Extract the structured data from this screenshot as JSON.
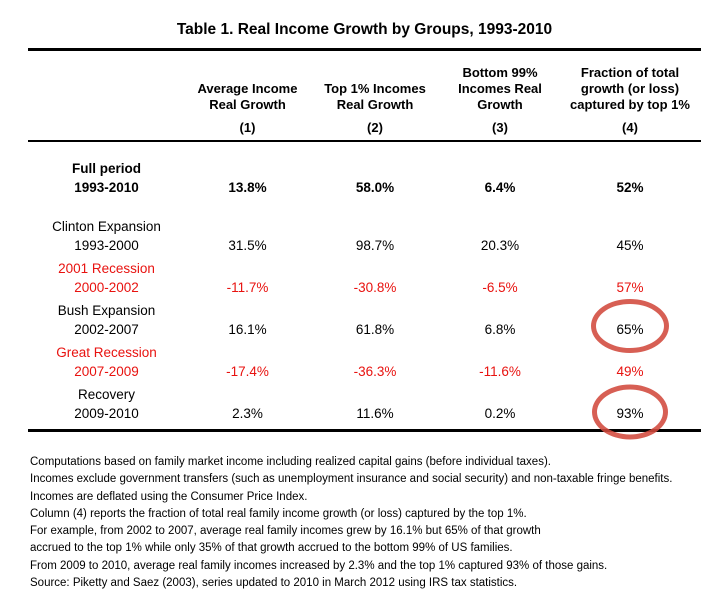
{
  "title": "Table 1. Real Income Growth by Groups, 1993-2010",
  "table": {
    "columns": [
      {
        "lines": [
          "Average Income",
          "Real Growth"
        ],
        "number": "(1)"
      },
      {
        "lines": [
          "Top 1% Incomes",
          "Real Growth"
        ],
        "number": "(2)"
      },
      {
        "lines": [
          "Bottom 99%",
          "Incomes Real",
          "Growth"
        ],
        "number": "(3)"
      },
      {
        "lines": [
          "Fraction of total",
          "growth (or loss)",
          "captured by top 1%"
        ],
        "number": "(4)"
      }
    ],
    "rows": [
      {
        "name": "Full period",
        "period": "1993-2010",
        "values": [
          "13.8%",
          "58.0%",
          "6.4%",
          "52%"
        ],
        "bold": true,
        "color": "black",
        "circled": false
      },
      {
        "name": "Clinton Expansion",
        "period": "1993-2000",
        "values": [
          "31.5%",
          "98.7%",
          "20.3%",
          "45%"
        ],
        "bold": false,
        "color": "black",
        "circled": false
      },
      {
        "name": "2001 Recession",
        "period": "2000-2002",
        "values": [
          "-11.7%",
          "-30.8%",
          "-6.5%",
          "57%"
        ],
        "bold": false,
        "color": "red",
        "circled": false
      },
      {
        "name": "Bush Expansion",
        "period": "2002-2007",
        "values": [
          "16.1%",
          "61.8%",
          "6.8%",
          "65%"
        ],
        "bold": false,
        "color": "black",
        "circled": true
      },
      {
        "name": "Great Recession",
        "period": "2007-2009",
        "values": [
          "-17.4%",
          "-36.3%",
          "-11.6%",
          "49%"
        ],
        "bold": false,
        "color": "red",
        "circled": false
      },
      {
        "name": "Recovery",
        "period": "2009-2010",
        "values": [
          "2.3%",
          "11.6%",
          "0.2%",
          "93%"
        ],
        "bold": false,
        "color": "black",
        "circled": true
      }
    ]
  },
  "footnotes": [
    "Computations based on family market income including realized capital gains (before individual taxes).",
    "Incomes exclude government transfers (such as unemployment insurance and social security) and non-taxable fringe benefits.",
    "Incomes are deflated using the Consumer Price Index.",
    "Column (4) reports the fraction of total real family income growth (or loss) captured by the top 1%.",
    "For example, from 2002 to 2007, average real family incomes grew by 16.1% but 65% of that growth",
    "accrued to the top 1% while only 35% of that growth accrued to the bottom 99% of US families.",
    "From 2009 to 2010, average real family incomes increased by 2.3% and the top 1% captured 93% of those gains.",
    "Source: Piketty and Saez (2003), series updated to 2010 in March 2012 using IRS tax statistics."
  ],
  "colors": {
    "text_black": "#000000",
    "negative_red": "#e8120f",
    "circle_red": "#d1493c"
  }
}
